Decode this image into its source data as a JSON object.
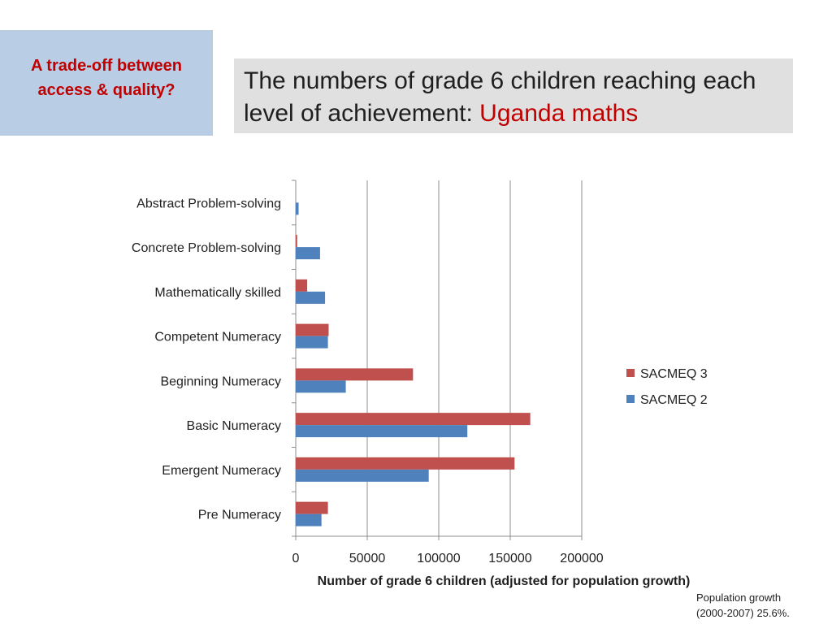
{
  "side_box": {
    "text": "A trade-off between access & quality?",
    "color": "#c00000",
    "background": "#b9cde5"
  },
  "title": {
    "text": "The numbers of grade 6 children reaching each level of achievement:",
    "highlight": "Uganda maths",
    "highlight_color": "#c00000",
    "background": "#e0e0e0"
  },
  "footnote": {
    "line1": "Population growth",
    "line2": "(2000-2007) 25.6%."
  },
  "chart_data": {
    "type": "bar",
    "orientation": "horizontal",
    "categories": [
      "Abstract Problem-solving",
      "Concrete Problem-solving",
      "Mathematically skilled",
      "Competent Numeracy",
      "Beginning Numeracy",
      "Basic Numeracy",
      "Emergent Numeracy",
      "Pre Numeracy"
    ],
    "series": [
      {
        "name": "SACMEQ 3",
        "color": "#c0504d",
        "values": [
          0,
          1000,
          8000,
          23000,
          82000,
          164000,
          153000,
          22500
        ]
      },
      {
        "name": "SACMEQ 2",
        "color": "#4f81bd",
        "values": [
          2000,
          17000,
          20500,
          22500,
          35000,
          120000,
          93000,
          18000
        ]
      }
    ],
    "xlabel": "Number of grade 6 children (adjusted for population growth)",
    "ylabel": "",
    "xlim": [
      0,
      200000
    ],
    "ticks": [
      "0",
      "50000",
      "100000",
      "150000",
      "200000"
    ],
    "tick_values": [
      0,
      50000,
      100000,
      150000,
      200000
    ],
    "grid": "vertical",
    "legend_position": "right"
  }
}
